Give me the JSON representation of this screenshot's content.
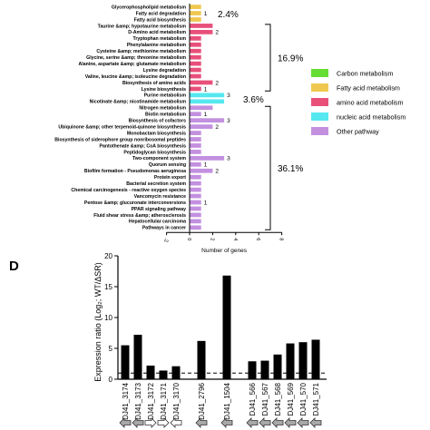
{
  "chart_data": [
    {
      "type": "bar",
      "orientation": "horizontal",
      "xlabel": "Number of genes",
      "xticks": [
        "-2",
        "0",
        "2",
        "4",
        "6",
        "8"
      ],
      "xlim": [
        -2,
        8
      ],
      "categories": [
        "Glycerophospholipid metabolism",
        "Fatty acid degradation",
        "Fatty acid biosynthesis",
        "Taurine &amp; hypotaurine metabolism",
        "D-Amino acid metabolism",
        "Tryptophan metabolism",
        "Phenylalanine metabolism",
        "Cysteine &amp; methionine metabolism",
        "Glycine, serine &amp; threonine metabolism",
        "Alanine, aspartate &amp; glutamate metabolism",
        "Lysine degradation",
        "Valine, leucine &amp; isoleucine degradation",
        "Biosynthesis of amino acids",
        "Lysine biosynthesis",
        "Purine metabolism",
        "Nicotinate &amp; nicotinamide metabolism",
        "Nitrogen metabolism",
        "Biotin metabolism",
        "Biosynthesis of cofactors",
        "Ubiquinone &amp; other terpenoid-quinone biosynthesis",
        "Monobactam biosynthesis",
        "Biosynthesis of siderophore group nonribosomal peptides",
        "Pantothenate &amp; CoA biosynthesis",
        "Peptidoglycan biosynthesis",
        "Two-component system",
        "Quorum sensing",
        "Biofilm formation - Pseudomonas aeruginosa",
        "Protein export",
        "Bacterial secretion system",
        "Chemical carcinogenesis - reactive oxygen species",
        "Vancomycin resistance",
        "Pentose &amp; glucuronate interconversions",
        "PPAR signaling pathway",
        "Fluid shear stress &amp; atherosclerosis",
        "Hepatocellular carcinoma",
        "Pathways in cancer"
      ],
      "values": [
        1,
        1,
        1,
        2,
        2,
        1,
        1,
        1,
        1,
        1,
        1,
        1,
        2,
        1,
        3,
        3,
        2,
        1,
        3,
        2,
        1,
        1,
        1,
        1,
        3,
        1,
        2,
        1,
        1,
        1,
        1,
        1,
        1,
        1,
        1,
        1
      ],
      "group": [
        "fatty",
        "fatty",
        "fatty",
        "amino",
        "amino",
        "amino",
        "amino",
        "amino",
        "amino",
        "amino",
        "amino",
        "amino",
        "amino",
        "amino",
        "nucleic",
        "nucleic",
        "other",
        "other",
        "other",
        "other",
        "other",
        "other",
        "other",
        "other",
        "other",
        "other",
        "other",
        "other",
        "other",
        "other",
        "other",
        "other",
        "other",
        "other",
        "other",
        "other"
      ],
      "value_labels": [
        "",
        "1",
        "",
        "",
        "2",
        "",
        "",
        "",
        "",
        "",
        "",
        "",
        "2",
        "1",
        "3",
        "",
        "",
        "1",
        "3",
        "2",
        "",
        "",
        "",
        "",
        "3",
        "1",
        "2",
        "",
        "",
        "",
        "",
        "1",
        "",
        "",
        "",
        ""
      ],
      "bracket_labels": [
        {
          "text": "2.4%",
          "first": 0,
          "last": 2,
          "bracket": false
        },
        {
          "text": "16.9%",
          "first": 3,
          "last": 13,
          "bracket": true
        },
        {
          "text": "3.6%",
          "first": 14,
          "last": 15,
          "bracket": false
        },
        {
          "text": "36.1%",
          "first": 16,
          "last": 35,
          "bracket": true
        }
      ],
      "legend": {
        "placement": "right",
        "items": [
          {
            "label": "Carbon metabolism",
            "color": "#66dd33"
          },
          {
            "label": "Fatty acid metabolism",
            "color": "#f0c850"
          },
          {
            "label": "amino acid metabolism",
            "color": "#e8507a"
          },
          {
            "label": "nucleic acid metabolism",
            "color": "#55e8f0"
          },
          {
            "label": "Other pathway",
            "color": "#c390e0"
          }
        ]
      },
      "colors": {
        "fatty": "#f0c850",
        "amino": "#e8507a",
        "nucleic": "#55e8f0",
        "other": "#c390e0"
      }
    },
    {
      "type": "bar",
      "panel_label": "D",
      "ylabel": "Expression ratio (Log₂; WT/ΔSR)",
      "ylim": [
        0,
        20
      ],
      "yticks": [
        0,
        5,
        10,
        15,
        20
      ],
      "reference_line": 1,
      "categories": [
        "DJ41_3174",
        "DJ41_3173",
        "DJ41_3172",
        "DJ41_3171",
        "DJ41_3170",
        "DJ41_2796",
        "DJ41_1504",
        "DJ41_566",
        "DJ41_567",
        "DJ41_568",
        "DJ41_569",
        "DJ41_570",
        "DJ41_571"
      ],
      "values": [
        5.5,
        7.2,
        2.2,
        1.4,
        2.1,
        6.2,
        16.8,
        2.9,
        3.0,
        4.0,
        5.8,
        6.0,
        6.4
      ],
      "arrows": [
        "left",
        "left",
        "right",
        "right",
        "left",
        "left",
        "left",
        "left",
        "left",
        "left",
        "left",
        "left",
        "left"
      ],
      "arrow_fill": [
        "gray",
        "gray",
        "white",
        "white",
        "white",
        "gray",
        "gray",
        "gray",
        "gray",
        "gray",
        "gray",
        "gray",
        "gray"
      ],
      "colors": {
        "bar": "#000000",
        "arrow_gray": "#a8a8a8"
      }
    }
  ]
}
